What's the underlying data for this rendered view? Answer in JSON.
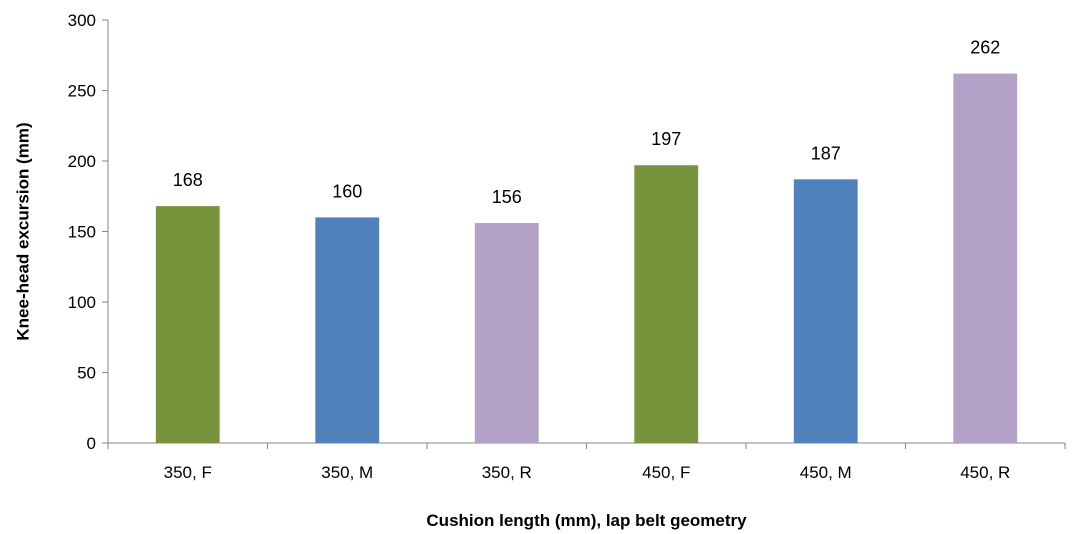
{
  "chart_data": {
    "type": "bar",
    "categories": [
      "350, F",
      "350, M",
      "350, R",
      "450, F",
      "450, M",
      "450, R"
    ],
    "values": [
      168,
      160,
      156,
      197,
      187,
      262
    ],
    "data_labels": [
      "168",
      "160",
      "156",
      "197",
      "187",
      "262"
    ],
    "bar_colors": [
      "#77933c",
      "#4f81bd",
      "#b3a2c7",
      "#77933c",
      "#4f81bd",
      "#b3a2c7"
    ],
    "title": "",
    "xlabel": "Cushion length (mm), lap belt geometry",
    "ylabel": "Knee-head excursion (mm)",
    "ylim": [
      0,
      300
    ],
    "yticks": [
      0,
      50,
      100,
      150,
      200,
      250,
      300
    ],
    "ytick_labels": [
      "0",
      "50",
      "100",
      "150",
      "200",
      "250",
      "300"
    ],
    "grid": false,
    "legend": "none"
  }
}
